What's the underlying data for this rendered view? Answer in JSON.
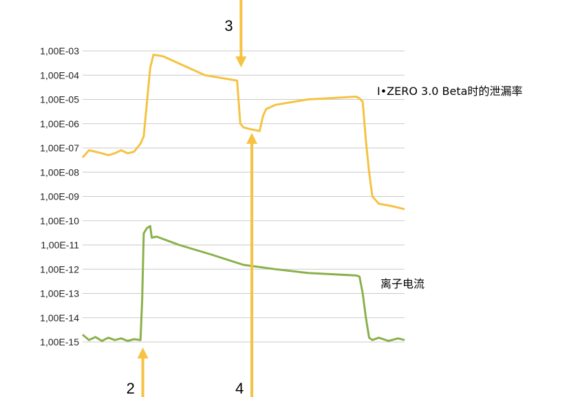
{
  "chart_data": {
    "type": "line",
    "title": "",
    "xlabel": "",
    "ylabel": "",
    "y_scale": "log",
    "ylim": [
      1e-15,
      0.001
    ],
    "x_ticks_shown": false,
    "grid": "horizontal",
    "y_tick_labels": [
      "1,00E-03",
      "1,00E-04",
      "1,00E-05",
      "1,00E-06",
      "1,00E-07",
      "1,00E-08",
      "1,00E-09",
      "1,00E-10",
      "1,00E-11",
      "1,00E-12",
      "1,00E-13",
      "1,00E-14",
      "1,00E-15"
    ],
    "series": [
      {
        "name": "I•ZERO 3.0 Beta时的泄漏率",
        "color": "#f5c242",
        "points": [
          [
            0,
            4e-08
          ],
          [
            2,
            8e-08
          ],
          [
            4,
            7e-08
          ],
          [
            6,
            6e-08
          ],
          [
            8,
            5e-08
          ],
          [
            10,
            6e-08
          ],
          [
            12,
            8e-08
          ],
          [
            14,
            6e-08
          ],
          [
            16,
            7e-08
          ],
          [
            18,
            1.5e-07
          ],
          [
            19,
            3e-07
          ],
          [
            21,
            0.0002
          ],
          [
            22,
            0.0007
          ],
          [
            25,
            0.0006
          ],
          [
            30,
            0.0003
          ],
          [
            38,
            0.0001
          ],
          [
            48,
            6e-05
          ],
          [
            49,
            1e-06
          ],
          [
            50,
            7e-07
          ],
          [
            52,
            6e-07
          ],
          [
            55,
            5e-07
          ],
          [
            56,
            2e-06
          ],
          [
            57,
            4e-06
          ],
          [
            60,
            6e-06
          ],
          [
            70,
            1e-05
          ],
          [
            85,
            1.3e-05
          ],
          [
            86,
            1.1e-05
          ],
          [
            87,
            8e-06
          ],
          [
            88,
            2e-07
          ],
          [
            89,
            1e-08
          ],
          [
            90,
            1e-09
          ],
          [
            92,
            5e-10
          ],
          [
            96,
            4e-10
          ],
          [
            100,
            3e-10
          ]
        ]
      },
      {
        "name": "离子电流",
        "color": "#8ab04a",
        "points": [
          [
            0,
            2e-15
          ],
          [
            2,
            1.2e-15
          ],
          [
            4,
            1.6e-15
          ],
          [
            6,
            1.1e-15
          ],
          [
            8,
            1.5e-15
          ],
          [
            10,
            1.2e-15
          ],
          [
            12,
            1.4e-15
          ],
          [
            14,
            1.1e-15
          ],
          [
            16,
            1.3e-15
          ],
          [
            18,
            1.2e-15
          ],
          [
            18.5,
            5e-14
          ],
          [
            19,
            3e-11
          ],
          [
            20,
            5e-11
          ],
          [
            21,
            6e-11
          ],
          [
            21.5,
            2e-11
          ],
          [
            23,
            2.2e-11
          ],
          [
            30,
            1e-11
          ],
          [
            40,
            4e-12
          ],
          [
            50,
            1.5e-12
          ],
          [
            60,
            1e-12
          ],
          [
            70,
            7e-13
          ],
          [
            85,
            5.5e-13
          ],
          [
            86,
            5e-13
          ],
          [
            87,
            1e-13
          ],
          [
            88,
            1e-14
          ],
          [
            89,
            1.5e-15
          ],
          [
            90,
            1.2e-15
          ],
          [
            92,
            1.5e-15
          ],
          [
            95,
            1.1e-15
          ],
          [
            98,
            1.4e-15
          ],
          [
            100,
            1.2e-15
          ]
        ]
      }
    ],
    "annotations": [
      {
        "label": "3",
        "x": 49,
        "direction": "down"
      },
      {
        "label": "4",
        "x": 53,
        "direction": "up"
      },
      {
        "label": "2",
        "x": 18.5,
        "direction": "up"
      }
    ]
  }
}
